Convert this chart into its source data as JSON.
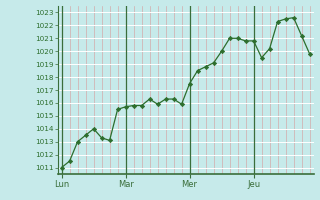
{
  "background_color": "#c6eaea",
  "line_color": "#2d6e2d",
  "marker_color": "#2d6e2d",
  "grid_color_h": "#ffffff",
  "grid_color_v": "#d4aaaa",
  "day_line_color": "#3a6e3a",
  "tick_label_color": "#2d6e2d",
  "day_labels": [
    "Lun",
    "Mar",
    "Mer",
    "Jeu"
  ],
  "day_positions": [
    0,
    8,
    16,
    24
  ],
  "xlim": [
    -0.5,
    31.5
  ],
  "ylim": [
    1010.5,
    1023.5
  ],
  "yticks": [
    1011,
    1012,
    1013,
    1014,
    1015,
    1016,
    1017,
    1018,
    1019,
    1020,
    1021,
    1022,
    1023
  ],
  "xtick_minor": [
    0,
    1,
    2,
    3,
    4,
    5,
    6,
    7,
    8,
    9,
    10,
    11,
    12,
    13,
    14,
    15,
    16,
    17,
    18,
    19,
    20,
    21,
    22,
    23,
    24,
    25,
    26,
    27,
    28,
    29,
    30,
    31
  ],
  "x": [
    0,
    1,
    2,
    3,
    4,
    5,
    6,
    7,
    8,
    9,
    10,
    11,
    12,
    13,
    14,
    15,
    16,
    17,
    18,
    19,
    20,
    21,
    22,
    23,
    24,
    25,
    26,
    27,
    28,
    29,
    30,
    31
  ],
  "y": [
    1011,
    1011.5,
    1013,
    1013.5,
    1014,
    1013.3,
    1013.1,
    1015.5,
    1015.7,
    1015.8,
    1015.8,
    1016.3,
    1015.9,
    1016.3,
    1016.3,
    1015.9,
    1017.5,
    1018.5,
    1018.8,
    1019.1,
    1020.0,
    1021.0,
    1021.0,
    1020.8,
    1020.8,
    1019.5,
    1020.2,
    1022.3,
    1022.5,
    1022.6,
    1021.2,
    1019.8
  ]
}
